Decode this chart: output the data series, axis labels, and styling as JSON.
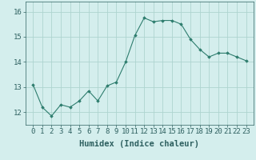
{
  "x": [
    0,
    1,
    2,
    3,
    4,
    5,
    6,
    7,
    8,
    9,
    10,
    11,
    12,
    13,
    14,
    15,
    16,
    17,
    18,
    19,
    20,
    21,
    22,
    23
  ],
  "y": [
    13.1,
    12.2,
    11.85,
    12.3,
    12.2,
    12.45,
    12.85,
    12.45,
    13.05,
    13.2,
    14.0,
    15.05,
    15.75,
    15.6,
    15.65,
    15.65,
    15.5,
    14.9,
    14.5,
    14.2,
    14.35,
    14.35,
    14.2,
    14.05
  ],
  "line_color": "#2e7d6e",
  "marker": "D",
  "marker_size": 1.8,
  "bg_color": "#d4eeed",
  "grid_color": "#aed4d0",
  "xlabel": "Humidex (Indice chaleur)",
  "ylim": [
    11.5,
    16.4
  ],
  "yticks": [
    12,
    13,
    14,
    15,
    16
  ],
  "xticks": [
    0,
    1,
    2,
    3,
    4,
    5,
    6,
    7,
    8,
    9,
    10,
    11,
    12,
    13,
    14,
    15,
    16,
    17,
    18,
    19,
    20,
    21,
    22,
    23
  ],
  "tick_color": "#2e6060",
  "xlabel_color": "#2e6060",
  "xlabel_fontsize": 7.5,
  "tick_fontsize": 6.5
}
